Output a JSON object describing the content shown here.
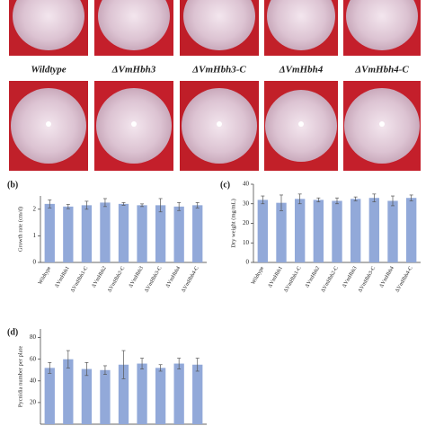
{
  "photo_labels": [
    "Wildtype",
    "ΔVmHbh3",
    "ΔVmHbh3-C",
    "ΔVmHbh4",
    "ΔVmHbh4-C"
  ],
  "chart_data": [
    {
      "type": "bar",
      "panel": "(b)",
      "ylabel": "Growth rate (cm/d)",
      "categories": [
        "Wildtype",
        "ΔVmHbh1",
        "ΔVmHbh1-C",
        "ΔVmHbh2",
        "ΔVmHbh2-C",
        "ΔVmHbh3",
        "ΔVmHbh3-C",
        "ΔVmHbh4",
        "ΔVmHbh4-C"
      ],
      "values": [
        2.2,
        2.1,
        2.15,
        2.25,
        2.2,
        2.15,
        2.15,
        2.1,
        2.15
      ],
      "errors": [
        0.15,
        0.08,
        0.15,
        0.15,
        0.05,
        0.05,
        0.25,
        0.15,
        0.1
      ],
      "color": "#92a9d9",
      "ylim": [
        0,
        2.5
      ],
      "yticks": [
        0,
        1,
        2
      ]
    },
    {
      "type": "bar",
      "panel": "(c)",
      "ylabel": "Dry weight (mg/mL)",
      "categories": [
        "Wildtype",
        "ΔVmHbh1",
        "ΔVmHbh1-C",
        "ΔVmHbh2",
        "ΔVmHbh2-C",
        "ΔVmHbh3",
        "ΔVmHbh3-C",
        "ΔVmHbh4",
        "ΔVmHbh4-C"
      ],
      "values": [
        32,
        30.5,
        32.5,
        32,
        31.5,
        32.5,
        33,
        31.5,
        33
      ],
      "errors": [
        2,
        4,
        2.5,
        1,
        1.5,
        1,
        2,
        2.5,
        1.5
      ],
      "color": "#92a9d9",
      "ylim": [
        0,
        40
      ],
      "yticks": [
        0,
        10,
        20,
        30,
        40
      ]
    },
    {
      "type": "bar",
      "panel": "(d)",
      "ylabel": "Pycnidia number per plate",
      "categories": [
        null,
        null,
        null,
        null,
        null,
        null,
        null,
        null,
        null
      ],
      "values": [
        52,
        60,
        51,
        50,
        55,
        56,
        52,
        56,
        55
      ],
      "errors": [
        5,
        8,
        6,
        4,
        13,
        5,
        3,
        5,
        6
      ],
      "color": "#92a9d9",
      "ylim": [
        0,
        88
      ],
      "yticks": [
        20,
        40,
        60,
        80
      ]
    }
  ]
}
